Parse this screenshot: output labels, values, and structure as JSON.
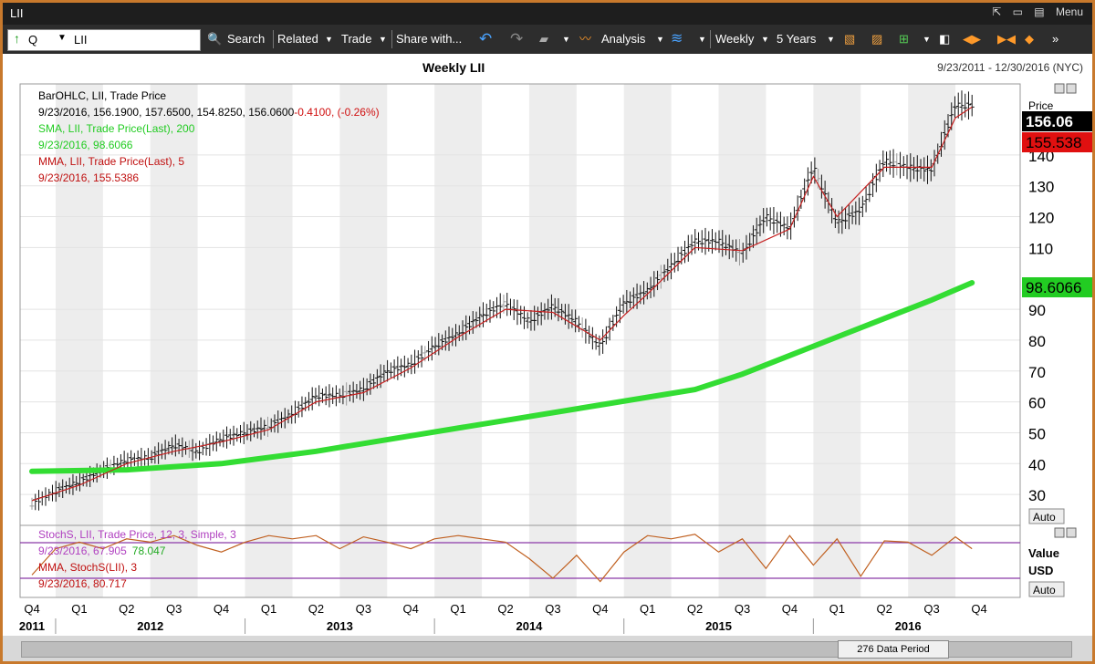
{
  "window": {
    "title": "LII",
    "menu_label": "Menu"
  },
  "toolbar": {
    "symbol_type": "Q",
    "symbol_value": "LII",
    "search_label": "Search",
    "related_label": "Related",
    "trade_label": "Trade",
    "share_label": "Share with...",
    "analysis_label": "Analysis",
    "interval_label": "Weekly",
    "range_label": "5 Years"
  },
  "header": {
    "title": "Weekly LII",
    "date_range": "9/23/2011 - 12/30/2016 (NYC)"
  },
  "legend": {
    "bar_title": "BarOHLC, LII, Trade Price",
    "bar_values": "9/23/2016, 156.1900, 157.6500, 154.8250, 156.0600",
    "bar_change": "-0.4100, (-0.26%)",
    "sma_title": "SMA, LII, Trade Price(Last), 200",
    "sma_value": "9/23/2016, 98.6066",
    "mma_title": "MMA, LII, Trade Price(Last), 5",
    "mma_value": "9/23/2016, 155.5386"
  },
  "lower_legend": {
    "stoch_title": "StochS, LII, Trade Price, 12, 3, Simple, 3",
    "stoch_values": "9/23/2016, 67.905",
    "stoch_extra": "78.047",
    "mma_title": "MMA, StochS(LII), 3",
    "mma_value": "9/23/2016, 80.717"
  },
  "axis": {
    "price_header": "Price",
    "value_label": "Value",
    "currency_label": "USD",
    "auto_label": "Auto",
    "last_price": "156.06",
    "mma_price": "155.538",
    "sma_price": "98.6066"
  },
  "bottom": {
    "period_label": "276 Data Period"
  },
  "chart_data": {
    "type": "line",
    "title": "Weekly LII",
    "y_ticks": [
      30,
      40,
      50,
      60,
      70,
      80,
      90,
      110,
      120,
      130,
      140
    ],
    "ylim": [
      20,
      163
    ],
    "quarter_labels": [
      "Q4",
      "Q1",
      "Q2",
      "Q3",
      "Q4",
      "Q1",
      "Q2",
      "Q3",
      "Q4",
      "Q1",
      "Q2",
      "Q3",
      "Q4",
      "Q1",
      "Q2",
      "Q3",
      "Q4",
      "Q1",
      "Q2",
      "Q3",
      "Q4"
    ],
    "year_labels": [
      "2011",
      "2012",
      "2013",
      "2014",
      "2015",
      "2016"
    ],
    "price_points": [
      {
        "t": 0,
        "v": 27
      },
      {
        "t": 0.5,
        "v": 31
      },
      {
        "t": 1,
        "v": 34
      },
      {
        "t": 1.5,
        "v": 38
      },
      {
        "t": 2,
        "v": 41
      },
      {
        "t": 2.5,
        "v": 42
      },
      {
        "t": 3,
        "v": 46
      },
      {
        "t": 3.5,
        "v": 44
      },
      {
        "t": 4,
        "v": 48
      },
      {
        "t": 4.5,
        "v": 50
      },
      {
        "t": 5,
        "v": 52
      },
      {
        "t": 5.5,
        "v": 56
      },
      {
        "t": 6,
        "v": 62
      },
      {
        "t": 6.5,
        "v": 62
      },
      {
        "t": 7,
        "v": 64
      },
      {
        "t": 7.5,
        "v": 70
      },
      {
        "t": 8,
        "v": 72
      },
      {
        "t": 8.5,
        "v": 78
      },
      {
        "t": 9,
        "v": 82
      },
      {
        "t": 9.5,
        "v": 88
      },
      {
        "t": 10,
        "v": 92
      },
      {
        "t": 10.5,
        "v": 86
      },
      {
        "t": 11,
        "v": 91
      },
      {
        "t": 11.5,
        "v": 86
      },
      {
        "t": 12,
        "v": 78
      },
      {
        "t": 12.5,
        "v": 92
      },
      {
        "t": 13,
        "v": 96
      },
      {
        "t": 13.5,
        "v": 104
      },
      {
        "t": 14,
        "v": 112
      },
      {
        "t": 14.5,
        "v": 112
      },
      {
        "t": 15,
        "v": 108
      },
      {
        "t": 15.5,
        "v": 120
      },
      {
        "t": 16,
        "v": 116
      },
      {
        "t": 16.5,
        "v": 136
      },
      {
        "t": 17,
        "v": 118
      },
      {
        "t": 17.5,
        "v": 122
      },
      {
        "t": 18,
        "v": 138
      },
      {
        "t": 18.5,
        "v": 136
      },
      {
        "t": 19,
        "v": 135
      },
      {
        "t": 19.5,
        "v": 156
      },
      {
        "t": 19.85,
        "v": 156
      }
    ],
    "mma_points": [
      {
        "t": 0,
        "v": 28
      },
      {
        "t": 1,
        "v": 33
      },
      {
        "t": 2,
        "v": 40
      },
      {
        "t": 3,
        "v": 44
      },
      {
        "t": 4,
        "v": 47
      },
      {
        "t": 5,
        "v": 51
      },
      {
        "t": 6,
        "v": 60
      },
      {
        "t": 7,
        "v": 63
      },
      {
        "t": 8,
        "v": 71
      },
      {
        "t": 9,
        "v": 81
      },
      {
        "t": 10,
        "v": 90
      },
      {
        "t": 11,
        "v": 89
      },
      {
        "t": 12,
        "v": 80
      },
      {
        "t": 12.5,
        "v": 88
      },
      {
        "t": 13,
        "v": 95
      },
      {
        "t": 14,
        "v": 110
      },
      {
        "t": 15,
        "v": 109
      },
      {
        "t": 16,
        "v": 116
      },
      {
        "t": 16.5,
        "v": 133
      },
      {
        "t": 17,
        "v": 120
      },
      {
        "t": 18,
        "v": 136
      },
      {
        "t": 19,
        "v": 136
      },
      {
        "t": 19.5,
        "v": 152
      },
      {
        "t": 19.85,
        "v": 155.5
      }
    ],
    "sma_points": [
      {
        "t": 0,
        "v": 37.5
      },
      {
        "t": 2,
        "v": 38
      },
      {
        "t": 4,
        "v": 40
      },
      {
        "t": 6,
        "v": 44
      },
      {
        "t": 8,
        "v": 49
      },
      {
        "t": 10,
        "v": 54
      },
      {
        "t": 12,
        "v": 59
      },
      {
        "t": 14,
        "v": 64
      },
      {
        "t": 15,
        "v": 69
      },
      {
        "t": 16,
        "v": 75
      },
      {
        "t": 17,
        "v": 81
      },
      {
        "t": 18,
        "v": 87
      },
      {
        "t": 19,
        "v": 93
      },
      {
        "t": 19.85,
        "v": 98.6
      }
    ],
    "stoch_points": [
      {
        "t": 0,
        "v": 30
      },
      {
        "t": 0.5,
        "v": 70
      },
      {
        "t": 1,
        "v": 80
      },
      {
        "t": 1.5,
        "v": 70
      },
      {
        "t": 2,
        "v": 85
      },
      {
        "t": 2.5,
        "v": 80
      },
      {
        "t": 3,
        "v": 90
      },
      {
        "t": 3.5,
        "v": 75
      },
      {
        "t": 4,
        "v": 65
      },
      {
        "t": 4.5,
        "v": 80
      },
      {
        "t": 5,
        "v": 90
      },
      {
        "t": 5.5,
        "v": 85
      },
      {
        "t": 6,
        "v": 90
      },
      {
        "t": 6.5,
        "v": 70
      },
      {
        "t": 7,
        "v": 88
      },
      {
        "t": 7.5,
        "v": 80
      },
      {
        "t": 8,
        "v": 70
      },
      {
        "t": 8.5,
        "v": 85
      },
      {
        "t": 9,
        "v": 90
      },
      {
        "t": 9.5,
        "v": 85
      },
      {
        "t": 10,
        "v": 80
      },
      {
        "t": 10.5,
        "v": 55
      },
      {
        "t": 11,
        "v": 25
      },
      {
        "t": 11.5,
        "v": 60
      },
      {
        "t": 12,
        "v": 20
      },
      {
        "t": 12.5,
        "v": 65
      },
      {
        "t": 13,
        "v": 90
      },
      {
        "t": 13.5,
        "v": 85
      },
      {
        "t": 14,
        "v": 92
      },
      {
        "t": 14.5,
        "v": 65
      },
      {
        "t": 15,
        "v": 85
      },
      {
        "t": 15.5,
        "v": 40
      },
      {
        "t": 16,
        "v": 90
      },
      {
        "t": 16.5,
        "v": 45
      },
      {
        "t": 17,
        "v": 85
      },
      {
        "t": 17.5,
        "v": 28
      },
      {
        "t": 18,
        "v": 82
      },
      {
        "t": 18.5,
        "v": 80
      },
      {
        "t": 19,
        "v": 60
      },
      {
        "t": 19.5,
        "v": 88
      },
      {
        "t": 19.85,
        "v": 70
      }
    ]
  }
}
